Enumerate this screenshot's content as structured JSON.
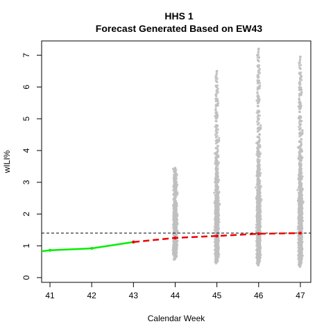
{
  "chart_data": {
    "type": "scatter",
    "title": "HHS 1",
    "subtitle": "Forecast Generated Based on EW43",
    "xlabel": "Calendar Week",
    "ylabel": "wILI%",
    "xlim": [
      40.8,
      47.25
    ],
    "ylim": [
      -0.15,
      7.45
    ],
    "x_ticks": [
      41,
      42,
      43,
      44,
      45,
      46,
      47
    ],
    "y_ticks": [
      0,
      1,
      2,
      3,
      4,
      5,
      6,
      7
    ],
    "grid": false,
    "baseline": {
      "value": 1.4,
      "style": "dashed",
      "color": "#000000"
    },
    "observed": {
      "color": "#00ee00",
      "x": [
        40.8,
        41,
        42,
        43
      ],
      "y": [
        0.83,
        0.86,
        0.92,
        1.12
      ]
    },
    "forecast_median": {
      "color": "#ee0000",
      "x": [
        43,
        44,
        45,
        46,
        47
      ],
      "y": [
        1.12,
        1.25,
        1.31,
        1.38,
        1.4
      ]
    },
    "forecast_samples": {
      "color": "#c0c0c0",
      "weeks": [
        {
          "x": 44,
          "median": 1.25,
          "min": 0.38,
          "max": 3.45,
          "core_low": 0.55,
          "core_high": 2.6
        },
        {
          "x": 45,
          "median": 1.31,
          "min": 0.28,
          "max": 6.5,
          "core_low": 0.4,
          "core_high": 3.0
        },
        {
          "x": 46,
          "median": 1.38,
          "min": 0.22,
          "max": 7.2,
          "core_low": 0.35,
          "core_high": 3.2
        },
        {
          "x": 47,
          "median": 1.4,
          "min": 0.18,
          "max": 6.95,
          "core_low": 0.3,
          "core_high": 3.1
        }
      ]
    }
  }
}
